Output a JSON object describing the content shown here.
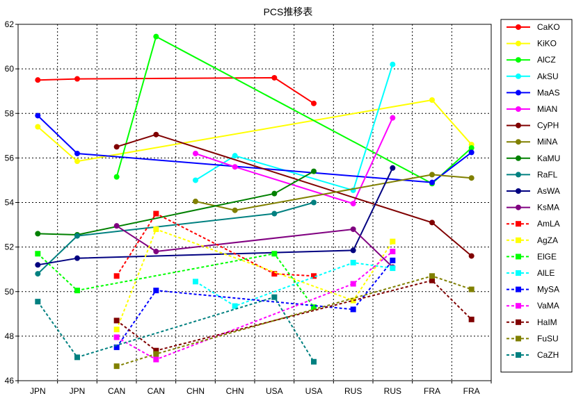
{
  "chart_data": {
    "type": "line",
    "title": "PCS推移表",
    "xlabel": "",
    "ylabel": "",
    "ylim": [
      46,
      62
    ],
    "yticks": [
      46,
      48,
      50,
      52,
      54,
      56,
      58,
      60,
      62
    ],
    "grid": true,
    "legend_position": "right",
    "categories": [
      "JPN",
      "JPN",
      "CAN",
      "CAN",
      "CHN",
      "CHN",
      "USA",
      "USA",
      "RUS",
      "RUS",
      "FRA",
      "FRA"
    ],
    "series": [
      {
        "name": "CaKO",
        "color": "#ff0000",
        "style": "solid",
        "marker": "circle",
        "values": [
          59.5,
          59.55,
          null,
          null,
          null,
          null,
          59.6,
          58.45,
          null,
          null,
          null,
          null
        ]
      },
      {
        "name": "KiKO",
        "color": "#ffff00",
        "style": "solid",
        "marker": "circle",
        "values": [
          57.4,
          55.85,
          null,
          null,
          null,
          null,
          null,
          null,
          null,
          null,
          58.6,
          56.6
        ]
      },
      {
        "name": "AlCZ",
        "color": "#00ff00",
        "style": "solid",
        "marker": "circle",
        "values": [
          null,
          null,
          55.15,
          61.45,
          null,
          null,
          null,
          null,
          null,
          null,
          54.85,
          56.45
        ]
      },
      {
        "name": "AkSU",
        "color": "#00ffff",
        "style": "solid",
        "marker": "circle",
        "values": [
          null,
          null,
          null,
          null,
          55.0,
          56.1,
          null,
          null,
          54.55,
          60.2,
          null,
          null
        ]
      },
      {
        "name": "MaAS",
        "color": "#0000ff",
        "style": "solid",
        "marker": "circle",
        "values": [
          57.9,
          56.2,
          null,
          null,
          null,
          null,
          null,
          null,
          null,
          null,
          54.9,
          56.25
        ]
      },
      {
        "name": "MiAN",
        "color": "#ff00ff",
        "style": "solid",
        "marker": "circle",
        "values": [
          null,
          null,
          null,
          null,
          56.2,
          55.6,
          null,
          null,
          53.95,
          57.8,
          null,
          null
        ]
      },
      {
        "name": "CyPH",
        "color": "#800000",
        "style": "solid",
        "marker": "circle",
        "values": [
          null,
          null,
          56.5,
          57.05,
          null,
          null,
          null,
          null,
          null,
          null,
          53.1,
          51.6
        ]
      },
      {
        "name": "MiNA",
        "color": "#808000",
        "style": "solid",
        "marker": "circle",
        "values": [
          null,
          null,
          null,
          null,
          54.05,
          53.65,
          null,
          null,
          null,
          null,
          55.25,
          55.1
        ]
      },
      {
        "name": "KaMU",
        "color": "#008000",
        "style": "solid",
        "marker": "circle",
        "values": [
          52.6,
          52.55,
          null,
          null,
          null,
          null,
          54.4,
          55.4,
          null,
          null,
          null,
          null
        ]
      },
      {
        "name": "RaFL",
        "color": "#008080",
        "style": "solid",
        "marker": "circle",
        "values": [
          50.8,
          52.5,
          null,
          null,
          null,
          null,
          53.5,
          54.0,
          null,
          null,
          null,
          null
        ]
      },
      {
        "name": "AsWA",
        "color": "#000080",
        "style": "solid",
        "marker": "circle",
        "values": [
          51.2,
          51.5,
          null,
          null,
          null,
          null,
          null,
          null,
          51.85,
          55.55,
          null,
          null
        ]
      },
      {
        "name": "KsMA",
        "color": "#800080",
        "style": "solid",
        "marker": "circle",
        "values": [
          null,
          null,
          52.95,
          51.8,
          null,
          null,
          null,
          null,
          52.8,
          51.1,
          null,
          null
        ]
      },
      {
        "name": "AmLA",
        "color": "#ff0000",
        "style": "dashed",
        "marker": "square",
        "values": [
          null,
          null,
          50.7,
          53.5,
          null,
          null,
          50.8,
          50.7,
          null,
          null,
          null,
          null
        ]
      },
      {
        "name": "AgZA",
        "color": "#ffff00",
        "style": "dashed",
        "marker": "square",
        "values": [
          null,
          null,
          48.3,
          52.8,
          null,
          null,
          null,
          null,
          49.6,
          52.25,
          null,
          null
        ]
      },
      {
        "name": "ElGE",
        "color": "#00ff00",
        "style": "dashed",
        "marker": "square",
        "values": [
          51.7,
          50.05,
          null,
          null,
          null,
          null,
          51.7,
          49.3,
          null,
          null,
          null,
          null
        ]
      },
      {
        "name": "AlLE",
        "color": "#00ffff",
        "style": "dashed",
        "marker": "square",
        "values": [
          null,
          null,
          null,
          null,
          50.45,
          49.35,
          null,
          null,
          51.3,
          51.05,
          null,
          null
        ]
      },
      {
        "name": "MySA",
        "color": "#0000ff",
        "style": "dashed",
        "marker": "square",
        "values": [
          null,
          null,
          47.5,
          50.05,
          null,
          null,
          null,
          null,
          49.2,
          51.4,
          null,
          null
        ]
      },
      {
        "name": "VaMA",
        "color": "#ff00ff",
        "style": "dashed",
        "marker": "square",
        "values": [
          null,
          null,
          47.95,
          46.95,
          null,
          null,
          null,
          null,
          50.35,
          51.8,
          null,
          null
        ]
      },
      {
        "name": "HaIM",
        "color": "#800000",
        "style": "dashed",
        "marker": "square",
        "values": [
          null,
          null,
          48.7,
          47.35,
          null,
          null,
          null,
          null,
          null,
          null,
          50.5,
          48.75
        ]
      },
      {
        "name": "FuSU",
        "color": "#808000",
        "style": "dashed",
        "marker": "square",
        "values": [
          null,
          null,
          46.65,
          47.2,
          null,
          null,
          null,
          null,
          null,
          null,
          50.7,
          50.1
        ]
      },
      {
        "name": "CaZH",
        "color": "#008080",
        "style": "dashed",
        "marker": "square",
        "values": [
          49.55,
          47.05,
          null,
          null,
          null,
          null,
          49.75,
          46.85,
          null,
          null,
          null,
          null
        ]
      }
    ]
  }
}
